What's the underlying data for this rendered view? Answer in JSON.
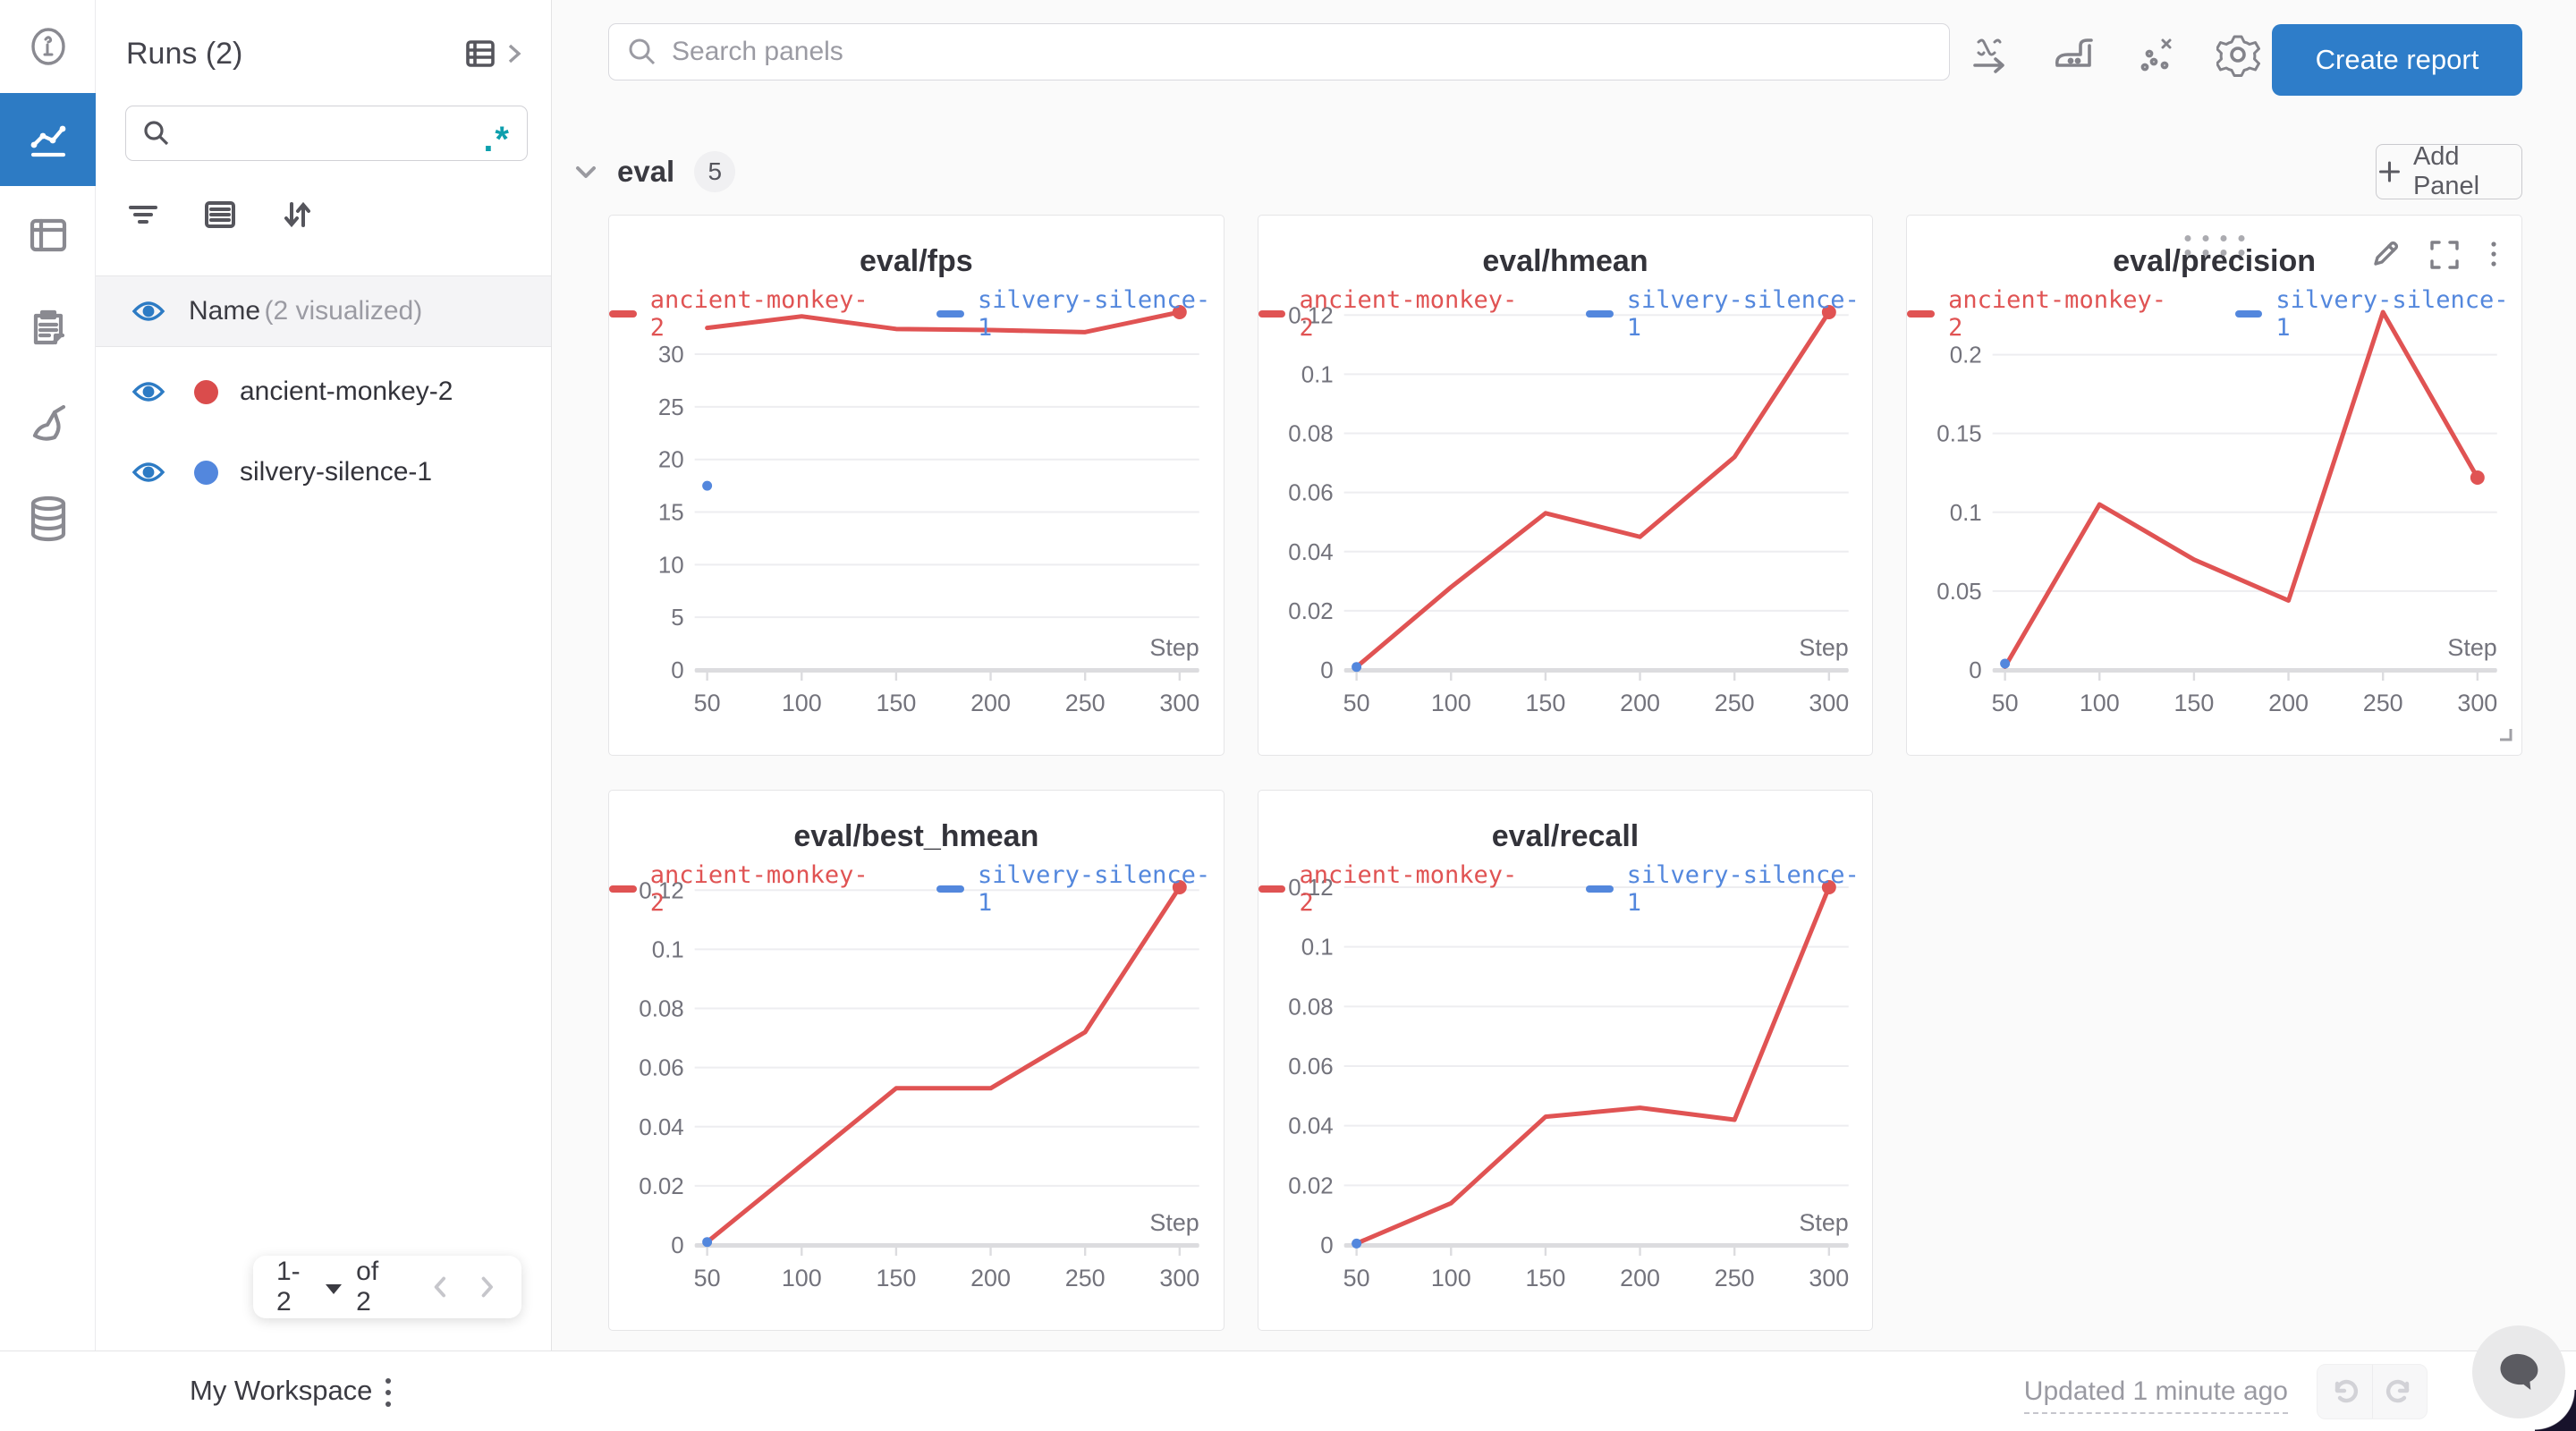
{
  "colors": {
    "accent_blue": "#2d7bc4",
    "button_blue": "#2e7dc9",
    "run_red": "#da4c4c",
    "line_red": "#e05353",
    "run_blue": "#5387dd",
    "teal": "#0d9fad",
    "grid": "#ededf0",
    "axis": "#dcdcdf",
    "tick_text": "#73737c"
  },
  "rail": {
    "items": [
      {
        "icon": "info-icon"
      },
      {
        "icon": "workspace-charts-icon",
        "active": true
      },
      {
        "icon": "runs-table-icon"
      },
      {
        "icon": "logs-clipboard-icon"
      },
      {
        "icon": "sweeps-broom-icon"
      },
      {
        "icon": "artifacts-database-icon"
      }
    ]
  },
  "runs_panel": {
    "title": "Runs (2)",
    "search_value": "",
    "search_placeholder": "",
    "regex_toggle": ".*",
    "header": {
      "label": "Name",
      "sub": "(2 visualized)"
    },
    "runs": [
      {
        "name": "ancient-monkey-2",
        "color": "#da4c4c"
      },
      {
        "name": "silvery-silence-1",
        "color": "#5387dd"
      }
    ],
    "pagination": {
      "range": "1-2",
      "of": "of 2"
    }
  },
  "topbar": {
    "search_placeholder": "Search panels",
    "create_report_label": "Create report"
  },
  "section": {
    "name": "eval",
    "count": "5",
    "add_panel_label": "Add Panel"
  },
  "bottombar": {
    "workspace": "My Workspace",
    "updated": "Updated 1 minute ago"
  },
  "chart_data": [
    {
      "type": "line",
      "title": "eval/fps",
      "xlabel": "Step",
      "x": [
        50,
        100,
        150,
        200,
        250,
        300
      ],
      "xtick_labels": [
        "50",
        "100",
        "150",
        "200",
        "250",
        "300"
      ],
      "yticks": [
        0,
        5,
        10,
        15,
        20,
        25,
        30
      ],
      "ytick_labels": [
        "0",
        "5",
        "10",
        "15",
        "20",
        "25",
        "30"
      ],
      "ylim": [
        0,
        34.0
      ],
      "legend_position": "top",
      "grid": true,
      "series": [
        {
          "name": "ancient-monkey-2",
          "color_key": "red",
          "values": [
            32.5,
            33.6,
            32.4,
            32.3,
            32.1,
            34.0
          ]
        },
        {
          "name": "silvery-silence-1",
          "color_key": "blue",
          "values": [
            17.5
          ],
          "point_only": true
        }
      ]
    },
    {
      "type": "line",
      "title": "eval/hmean",
      "xlabel": "Step",
      "x": [
        50,
        100,
        150,
        200,
        250,
        300
      ],
      "xtick_labels": [
        "50",
        "100",
        "150",
        "200",
        "250",
        "300"
      ],
      "yticks": [
        0,
        0.02,
        0.04,
        0.06,
        0.08,
        0.1,
        0.12
      ],
      "ytick_labels": [
        "0",
        "0.02",
        "0.04",
        "0.06",
        "0.08",
        "0.1",
        "0.12"
      ],
      "ylim": [
        0,
        0.121
      ],
      "legend_position": "top",
      "grid": true,
      "series": [
        {
          "name": "ancient-monkey-2",
          "color_key": "red",
          "values": [
            0.001,
            0.028,
            0.053,
            0.045,
            0.072,
            0.121
          ]
        },
        {
          "name": "silvery-silence-1",
          "color_key": "blue",
          "values": [
            0.001
          ],
          "point_only": true
        }
      ]
    },
    {
      "type": "line",
      "title": "eval/precision",
      "xlabel": "Step",
      "x": [
        50,
        100,
        150,
        200,
        250,
        300
      ],
      "xtick_labels": [
        "50",
        "100",
        "150",
        "200",
        "250",
        "300"
      ],
      "yticks": [
        0,
        0.05,
        0.1,
        0.15,
        0.2
      ],
      "ytick_labels": [
        "0",
        "0.05",
        "0.1",
        "0.15",
        "0.2"
      ],
      "ylim": [
        0,
        0.227
      ],
      "legend_position": "top",
      "grid": true,
      "hovered": true,
      "series": [
        {
          "name": "ancient-monkey-2",
          "color_key": "red",
          "values": [
            0.002,
            0.105,
            0.07,
            0.044,
            0.227,
            0.122
          ]
        },
        {
          "name": "silvery-silence-1",
          "color_key": "blue",
          "values": [
            0.004
          ],
          "point_only": true
        }
      ]
    },
    {
      "type": "line",
      "title": "eval/best_hmean",
      "xlabel": "Step",
      "x": [
        50,
        100,
        150,
        200,
        250,
        300
      ],
      "xtick_labels": [
        "50",
        "100",
        "150",
        "200",
        "250",
        "300"
      ],
      "yticks": [
        0,
        0.02,
        0.04,
        0.06,
        0.08,
        0.1,
        0.12
      ],
      "ytick_labels": [
        "0",
        "0.02",
        "0.04",
        "0.06",
        "0.08",
        "0.1",
        "0.12"
      ],
      "ylim": [
        0,
        0.121
      ],
      "legend_position": "top",
      "grid": true,
      "series": [
        {
          "name": "ancient-monkey-2",
          "color_key": "red",
          "values": [
            0.001,
            0.027,
            0.053,
            0.053,
            0.072,
            0.121
          ]
        },
        {
          "name": "silvery-silence-1",
          "color_key": "blue",
          "values": [
            0.001
          ],
          "point_only": true
        }
      ]
    },
    {
      "type": "line",
      "title": "eval/recall",
      "xlabel": "Step",
      "x": [
        50,
        100,
        150,
        200,
        250,
        300
      ],
      "xtick_labels": [
        "50",
        "100",
        "150",
        "200",
        "250",
        "300"
      ],
      "yticks": [
        0,
        0.02,
        0.04,
        0.06,
        0.08,
        0.1,
        0.12
      ],
      "ytick_labels": [
        "0",
        "0.02",
        "0.04",
        "0.06",
        "0.08",
        "0.1",
        "0.12"
      ],
      "ylim": [
        0,
        0.12
      ],
      "legend_position": "top",
      "grid": true,
      "series": [
        {
          "name": "ancient-monkey-2",
          "color_key": "red",
          "values": [
            0.0005,
            0.014,
            0.043,
            0.046,
            0.042,
            0.12
          ]
        },
        {
          "name": "silvery-silence-1",
          "color_key": "blue",
          "values": [
            0.0005
          ],
          "point_only": true
        }
      ]
    }
  ]
}
